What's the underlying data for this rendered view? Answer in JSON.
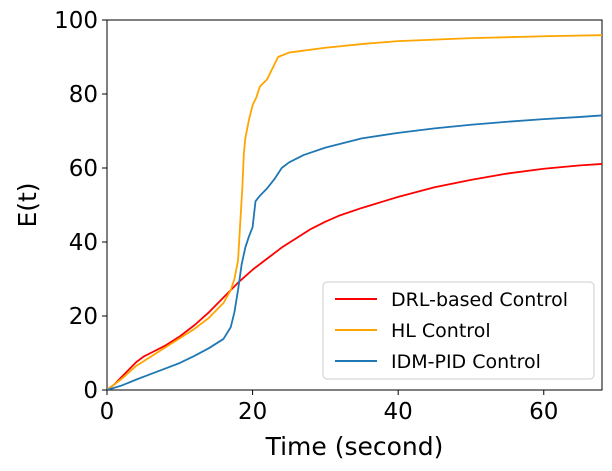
{
  "chart_data": {
    "type": "line",
    "title": "",
    "xlabel": "Time (second)",
    "ylabel": "E(t)",
    "xlim": [
      0,
      68
    ],
    "ylim": [
      0,
      100
    ],
    "xticks": [
      0,
      20,
      40,
      60
    ],
    "yticks": [
      0,
      20,
      40,
      60,
      80,
      100
    ],
    "grid": false,
    "legend_position": "lower-right",
    "series": [
      {
        "name": "DRL-based Control",
        "color": "#ff0000",
        "x": [
          0,
          1,
          2,
          3,
          4,
          5,
          6,
          8,
          10,
          12,
          14,
          16,
          18,
          20,
          22,
          24,
          26,
          28,
          30,
          32,
          35,
          38,
          40,
          45,
          50,
          55,
          60,
          65,
          68
        ],
        "y": [
          0,
          1.5,
          3.5,
          5.5,
          7.5,
          9,
          10,
          12,
          14.5,
          17.5,
          21,
          25,
          29,
          32.5,
          35.5,
          38.5,
          41,
          43.5,
          45.5,
          47.2,
          49.2,
          51,
          52.2,
          54.8,
          56.8,
          58.5,
          59.8,
          60.7,
          61.1
        ]
      },
      {
        "name": "HL Control",
        "color": "#ffa500",
        "x": [
          0,
          2,
          4,
          6,
          8,
          10,
          12,
          14,
          16,
          17,
          17.5,
          18,
          18.3,
          18.6,
          18.8,
          19,
          19.5,
          20,
          20.5,
          21,
          22,
          22.5,
          23,
          23.5,
          25,
          30,
          35,
          40,
          50,
          60,
          68
        ],
        "y": [
          0,
          3,
          6.5,
          9,
          11.5,
          14,
          16.5,
          19.5,
          23.5,
          27,
          30,
          35,
          45,
          55,
          64,
          68,
          73,
          77,
          79,
          82,
          84,
          86,
          88,
          90,
          91.2,
          92.5,
          93.5,
          94.3,
          95.1,
          95.6,
          95.9
        ]
      },
      {
        "name": "IDM-PID Control",
        "color": "#1f77b4",
        "x": [
          0,
          2,
          4,
          6,
          8,
          10,
          12,
          14,
          16,
          17,
          17.5,
          18,
          18.5,
          19,
          19.5,
          20,
          20.4,
          20.6,
          21,
          22,
          23,
          24,
          25,
          27,
          30,
          35,
          40,
          45,
          50,
          55,
          60,
          65,
          68
        ],
        "y": [
          0,
          1.2,
          2.8,
          4.3,
          5.8,
          7.3,
          9.2,
          11.3,
          13.8,
          17,
          21,
          27,
          34,
          38.5,
          41.5,
          44,
          51,
          51.5,
          52.5,
          54.5,
          57,
          60,
          61.5,
          63.5,
          65.5,
          68,
          69.5,
          70.7,
          71.7,
          72.5,
          73.2,
          73.8,
          74.2
        ]
      }
    ]
  }
}
